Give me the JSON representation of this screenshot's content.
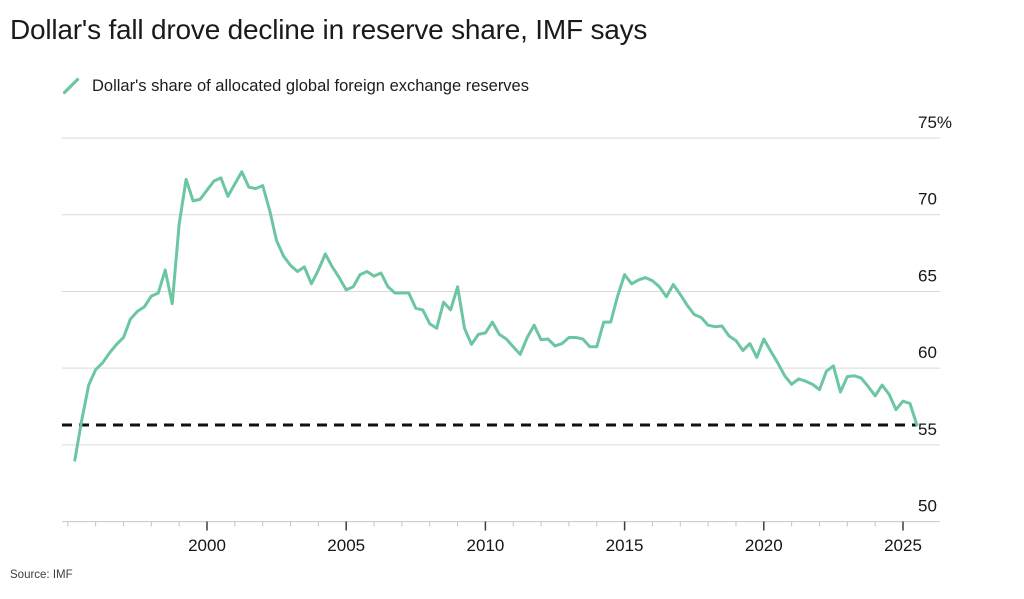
{
  "page": {
    "title": "Dollar's fall drove decline in reserve share, IMF says",
    "source": "Source: IMF"
  },
  "legend": {
    "label": "Dollar's share of allocated global foreign exchange reserves",
    "swatch_color": "#6cc6a2"
  },
  "colors": {
    "line": "#6cc6a2",
    "grid": "#d9d9d9",
    "axis": "#c9c9c9",
    "tick_minor": "#c4c4c4",
    "tick_major": "#3c3c3c",
    "reference": "#111111",
    "text": "#161616"
  },
  "chart_data": {
    "type": "line",
    "title": "Dollar's fall drove decline in reserve share, IMF says",
    "xlabel": "",
    "ylabel": "",
    "ylim": [
      50,
      75
    ],
    "xlim": [
      1995,
      2026.3
    ],
    "grid": "horizontal",
    "legend_position": "top-left",
    "y_ticks": [
      {
        "value": 75,
        "label": "75%"
      },
      {
        "value": 70,
        "label": "70"
      },
      {
        "value": 65,
        "label": "65"
      },
      {
        "value": 60,
        "label": "60"
      },
      {
        "value": 55,
        "label": "55"
      },
      {
        "value": 50,
        "label": "50"
      }
    ],
    "x_ticks_major": [
      2000,
      2005,
      2010,
      2015,
      2020,
      2025
    ],
    "x_minor_from": 1995,
    "x_minor_to": 2025,
    "reference_line": {
      "value": 56.3,
      "style": "dashed",
      "color": "#111111"
    },
    "series": [
      {
        "name": "Dollar's share of allocated global foreign exchange reserves",
        "color": "#6cc6a2",
        "frequency": "quarterly",
        "points": [
          [
            1995.25,
            54.0
          ],
          [
            1995.5,
            56.6
          ],
          [
            1995.75,
            58.9
          ],
          [
            1996.0,
            59.9
          ],
          [
            1996.25,
            60.35
          ],
          [
            1996.5,
            61.0
          ],
          [
            1996.75,
            61.55
          ],
          [
            1997.0,
            62.0
          ],
          [
            1997.25,
            63.2
          ],
          [
            1997.5,
            63.7
          ],
          [
            1997.75,
            64.0
          ],
          [
            1998.0,
            64.7
          ],
          [
            1998.25,
            64.9
          ],
          [
            1998.5,
            66.4
          ],
          [
            1998.75,
            64.2
          ],
          [
            1999.0,
            69.4
          ],
          [
            1999.25,
            72.3
          ],
          [
            1999.5,
            70.9
          ],
          [
            1999.75,
            71.0
          ],
          [
            2000.0,
            71.6
          ],
          [
            2000.25,
            72.2
          ],
          [
            2000.5,
            72.4
          ],
          [
            2000.75,
            71.2
          ],
          [
            2001.0,
            72.0
          ],
          [
            2001.25,
            72.8
          ],
          [
            2001.5,
            71.8
          ],
          [
            2001.75,
            71.7
          ],
          [
            2002.0,
            71.9
          ],
          [
            2002.25,
            70.3
          ],
          [
            2002.5,
            68.3
          ],
          [
            2002.75,
            67.3
          ],
          [
            2003.0,
            66.7
          ],
          [
            2003.25,
            66.3
          ],
          [
            2003.5,
            66.6
          ],
          [
            2003.75,
            65.5
          ],
          [
            2004.0,
            66.4
          ],
          [
            2004.25,
            67.45
          ],
          [
            2004.5,
            66.6
          ],
          [
            2004.75,
            65.9
          ],
          [
            2005.0,
            65.1
          ],
          [
            2005.25,
            65.3
          ],
          [
            2005.5,
            66.1
          ],
          [
            2005.75,
            66.3
          ],
          [
            2006.0,
            66.0
          ],
          [
            2006.25,
            66.2
          ],
          [
            2006.5,
            65.3
          ],
          [
            2006.75,
            64.9
          ],
          [
            2007.0,
            64.9
          ],
          [
            2007.25,
            64.9
          ],
          [
            2007.5,
            63.9
          ],
          [
            2007.75,
            63.8
          ],
          [
            2008.0,
            62.9
          ],
          [
            2008.25,
            62.6
          ],
          [
            2008.5,
            64.3
          ],
          [
            2008.75,
            63.8
          ],
          [
            2009.0,
            65.3
          ],
          [
            2009.25,
            62.6
          ],
          [
            2009.5,
            61.55
          ],
          [
            2009.75,
            62.2
          ],
          [
            2010.0,
            62.3
          ],
          [
            2010.25,
            63.0
          ],
          [
            2010.5,
            62.2
          ],
          [
            2010.75,
            61.9
          ],
          [
            2011.0,
            61.4
          ],
          [
            2011.25,
            60.9
          ],
          [
            2011.5,
            62.0
          ],
          [
            2011.75,
            62.8
          ],
          [
            2012.0,
            61.85
          ],
          [
            2012.25,
            61.9
          ],
          [
            2012.5,
            61.45
          ],
          [
            2012.75,
            61.6
          ],
          [
            2013.0,
            62.0
          ],
          [
            2013.25,
            62.0
          ],
          [
            2013.5,
            61.9
          ],
          [
            2013.75,
            61.4
          ],
          [
            2014.0,
            61.4
          ],
          [
            2014.25,
            63.0
          ],
          [
            2014.5,
            63.0
          ],
          [
            2014.75,
            64.7
          ],
          [
            2015.0,
            66.1
          ],
          [
            2015.25,
            65.5
          ],
          [
            2015.5,
            65.75
          ],
          [
            2015.75,
            65.9
          ],
          [
            2016.0,
            65.7
          ],
          [
            2016.25,
            65.3
          ],
          [
            2016.5,
            64.65
          ],
          [
            2016.75,
            65.45
          ],
          [
            2017.0,
            64.8
          ],
          [
            2017.25,
            64.1
          ],
          [
            2017.5,
            63.5
          ],
          [
            2017.75,
            63.3
          ],
          [
            2018.0,
            62.8
          ],
          [
            2018.25,
            62.7
          ],
          [
            2018.5,
            62.75
          ],
          [
            2018.75,
            62.1
          ],
          [
            2019.0,
            61.8
          ],
          [
            2019.25,
            61.15
          ],
          [
            2019.5,
            61.6
          ],
          [
            2019.75,
            60.7
          ],
          [
            2020.0,
            61.9
          ],
          [
            2020.25,
            61.1
          ],
          [
            2020.5,
            60.35
          ],
          [
            2020.75,
            59.5
          ],
          [
            2021.0,
            58.95
          ],
          [
            2021.25,
            59.3
          ],
          [
            2021.5,
            59.15
          ],
          [
            2021.75,
            58.95
          ],
          [
            2022.0,
            58.6
          ],
          [
            2022.25,
            59.8
          ],
          [
            2022.5,
            60.15
          ],
          [
            2022.75,
            58.45
          ],
          [
            2023.0,
            59.45
          ],
          [
            2023.25,
            59.5
          ],
          [
            2023.5,
            59.35
          ],
          [
            2023.75,
            58.8
          ],
          [
            2024.0,
            58.2
          ],
          [
            2024.25,
            58.9
          ],
          [
            2024.5,
            58.3
          ],
          [
            2024.75,
            57.3
          ],
          [
            2025.0,
            57.85
          ],
          [
            2025.25,
            57.7
          ],
          [
            2025.5,
            56.3
          ]
        ]
      }
    ]
  }
}
